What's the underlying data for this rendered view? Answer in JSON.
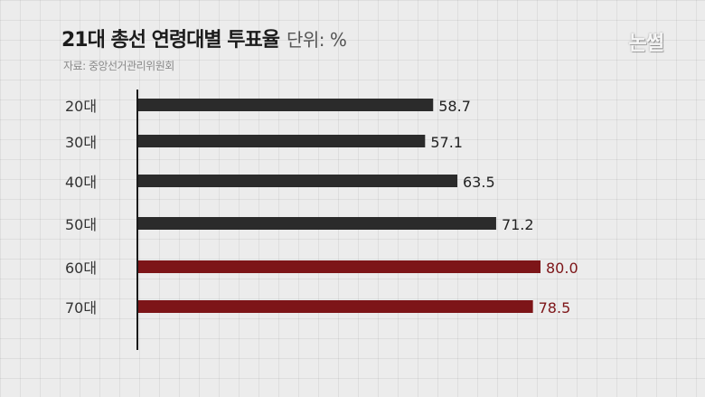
{
  "header": {
    "title": "21대 총선 연령대별 투표율",
    "unit": "단위: %",
    "source": "자료: 중앙선거관리위원회",
    "logo": "논썰"
  },
  "colors": {
    "bar_default": "#2b2b2b",
    "bar_highlight": "#7d1518",
    "label_default": "#222222",
    "label_highlight": "#7d1518",
    "axis": "#1a1a1a"
  },
  "chart_data": {
    "type": "bar",
    "orientation": "horizontal",
    "title": "21대 총선 연령대별 투표율",
    "unit": "%",
    "categories": [
      "20대",
      "30대",
      "40대",
      "50대",
      "60대",
      "70대"
    ],
    "values": [
      58.7,
      57.1,
      63.5,
      71.2,
      80.0,
      78.5
    ],
    "value_labels": [
      "58.7",
      "57.1",
      "63.5",
      "71.2",
      "80.0",
      "78.5"
    ],
    "highlighted": [
      false,
      false,
      false,
      false,
      true,
      true
    ],
    "xlim": [
      0,
      100
    ],
    "grid": true,
    "legend": "none"
  }
}
